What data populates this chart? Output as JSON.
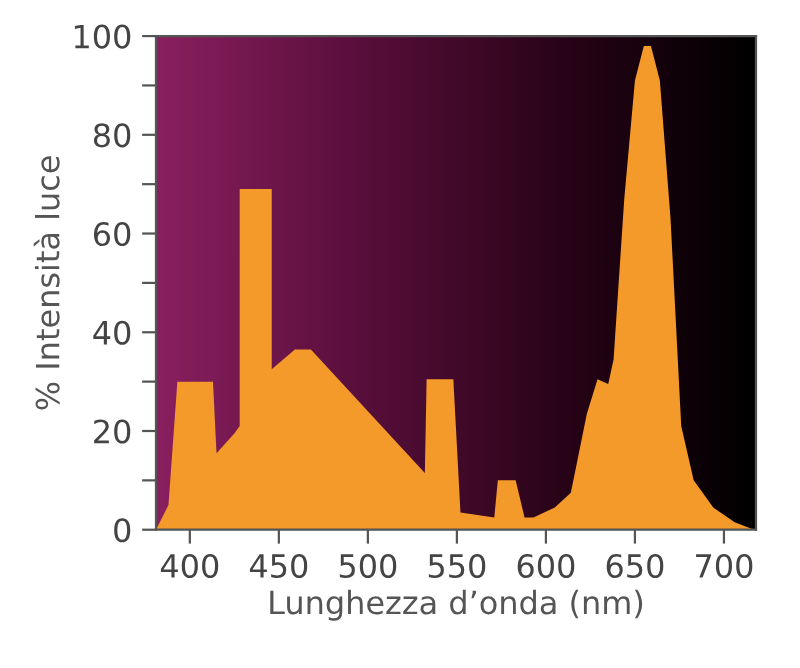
{
  "chart_data": {
    "type": "area",
    "xlabel": "Lunghezza d’onda (nm)",
    "ylabel": "% Intensità luce",
    "x": [
      381,
      388,
      393,
      413,
      415,
      425,
      428,
      428,
      446,
      446,
      459,
      468,
      532,
      533,
      548,
      552,
      571,
      573,
      583,
      588,
      593,
      605,
      614,
      623,
      629,
      635,
      638,
      644,
      650,
      655,
      659,
      664,
      670,
      676,
      683,
      694,
      706,
      717
    ],
    "series": [
      {
        "color": "#f39a2b",
        "values": [
          0,
          5,
          30,
          30,
          15.5,
          19.5,
          21,
          69,
          69,
          32.5,
          36.5,
          36.5,
          11.5,
          30.5,
          30.5,
          3.5,
          2.5,
          10,
          10,
          2.5,
          2.5,
          4.5,
          7.5,
          23.5,
          30.5,
          29.5,
          34.5,
          67,
          91,
          98,
          98,
          91,
          63,
          21,
          10,
          4.5,
          1.5,
          0
        ]
      }
    ],
    "xlim": [
      381,
      718
    ],
    "ylim": [
      0,
      100
    ],
    "xticks": [
      400,
      450,
      500,
      550,
      600,
      650,
      700
    ],
    "yticks": [
      0,
      {
        "value": 10,
        "label": null
      },
      20,
      {
        "value": 30,
        "label": null
      },
      40,
      {
        "value": 50,
        "label": null
      },
      60,
      {
        "value": 70,
        "label": null
      },
      80,
      {
        "value": 90,
        "label": null
      },
      100
    ],
    "grid": false
  }
}
